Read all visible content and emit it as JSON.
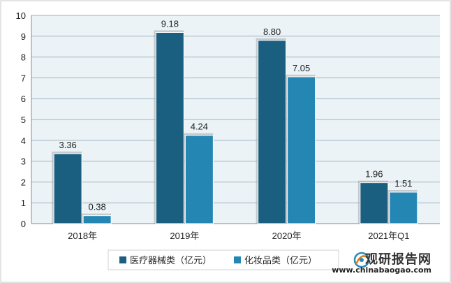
{
  "chart_data": {
    "type": "bar",
    "categories": [
      "2018年",
      "2019年",
      "2020年",
      "2021年Q1"
    ],
    "series": [
      {
        "name": "医疗器械类（亿元）",
        "values": [
          3.36,
          9.18,
          8.8,
          1.96
        ],
        "labels": [
          "3.36",
          "9.18",
          "8.80",
          "1.96"
        ],
        "color": "#1b5f80"
      },
      {
        "name": "化妆品类（亿元）",
        "values": [
          0.38,
          4.24,
          7.05,
          1.51
        ],
        "labels": [
          "0.38",
          "4.24",
          "7.05",
          "1.51"
        ],
        "color": "#2386b3"
      }
    ],
    "yticks": [
      "0",
      "1",
      "2",
      "3",
      "4",
      "5",
      "6",
      "7",
      "8",
      "9",
      "10"
    ],
    "ylim": [
      0,
      10
    ],
    "grid": "horizontal",
    "legend_position": "bottom",
    "plot_background": "#ebf3f7"
  },
  "watermark": {
    "brand": "观研报告网",
    "url": "www.chinabaogao.com"
  }
}
